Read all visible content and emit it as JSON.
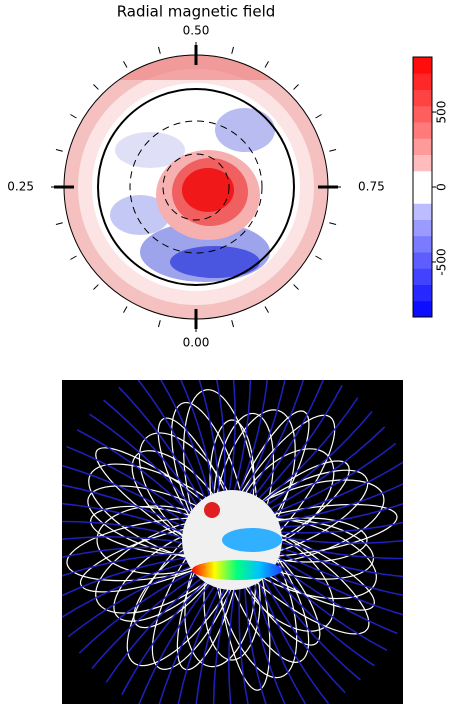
{
  "chart_data": {
    "type": "polar-map",
    "title": "Radial magnetic field",
    "phase_ticks": [
      {
        "value": 0.5,
        "label": "0.50"
      },
      {
        "value": 0.25,
        "label": "0.25"
      },
      {
        "value": 0.75,
        "label": "0.75"
      },
      {
        "value": 0,
        "label": "0.00"
      }
    ],
    "colorbar": {
      "ylim": [
        -867,
        867
      ],
      "yticks": [
        500,
        0,
        -500
      ]
    }
  }
}
